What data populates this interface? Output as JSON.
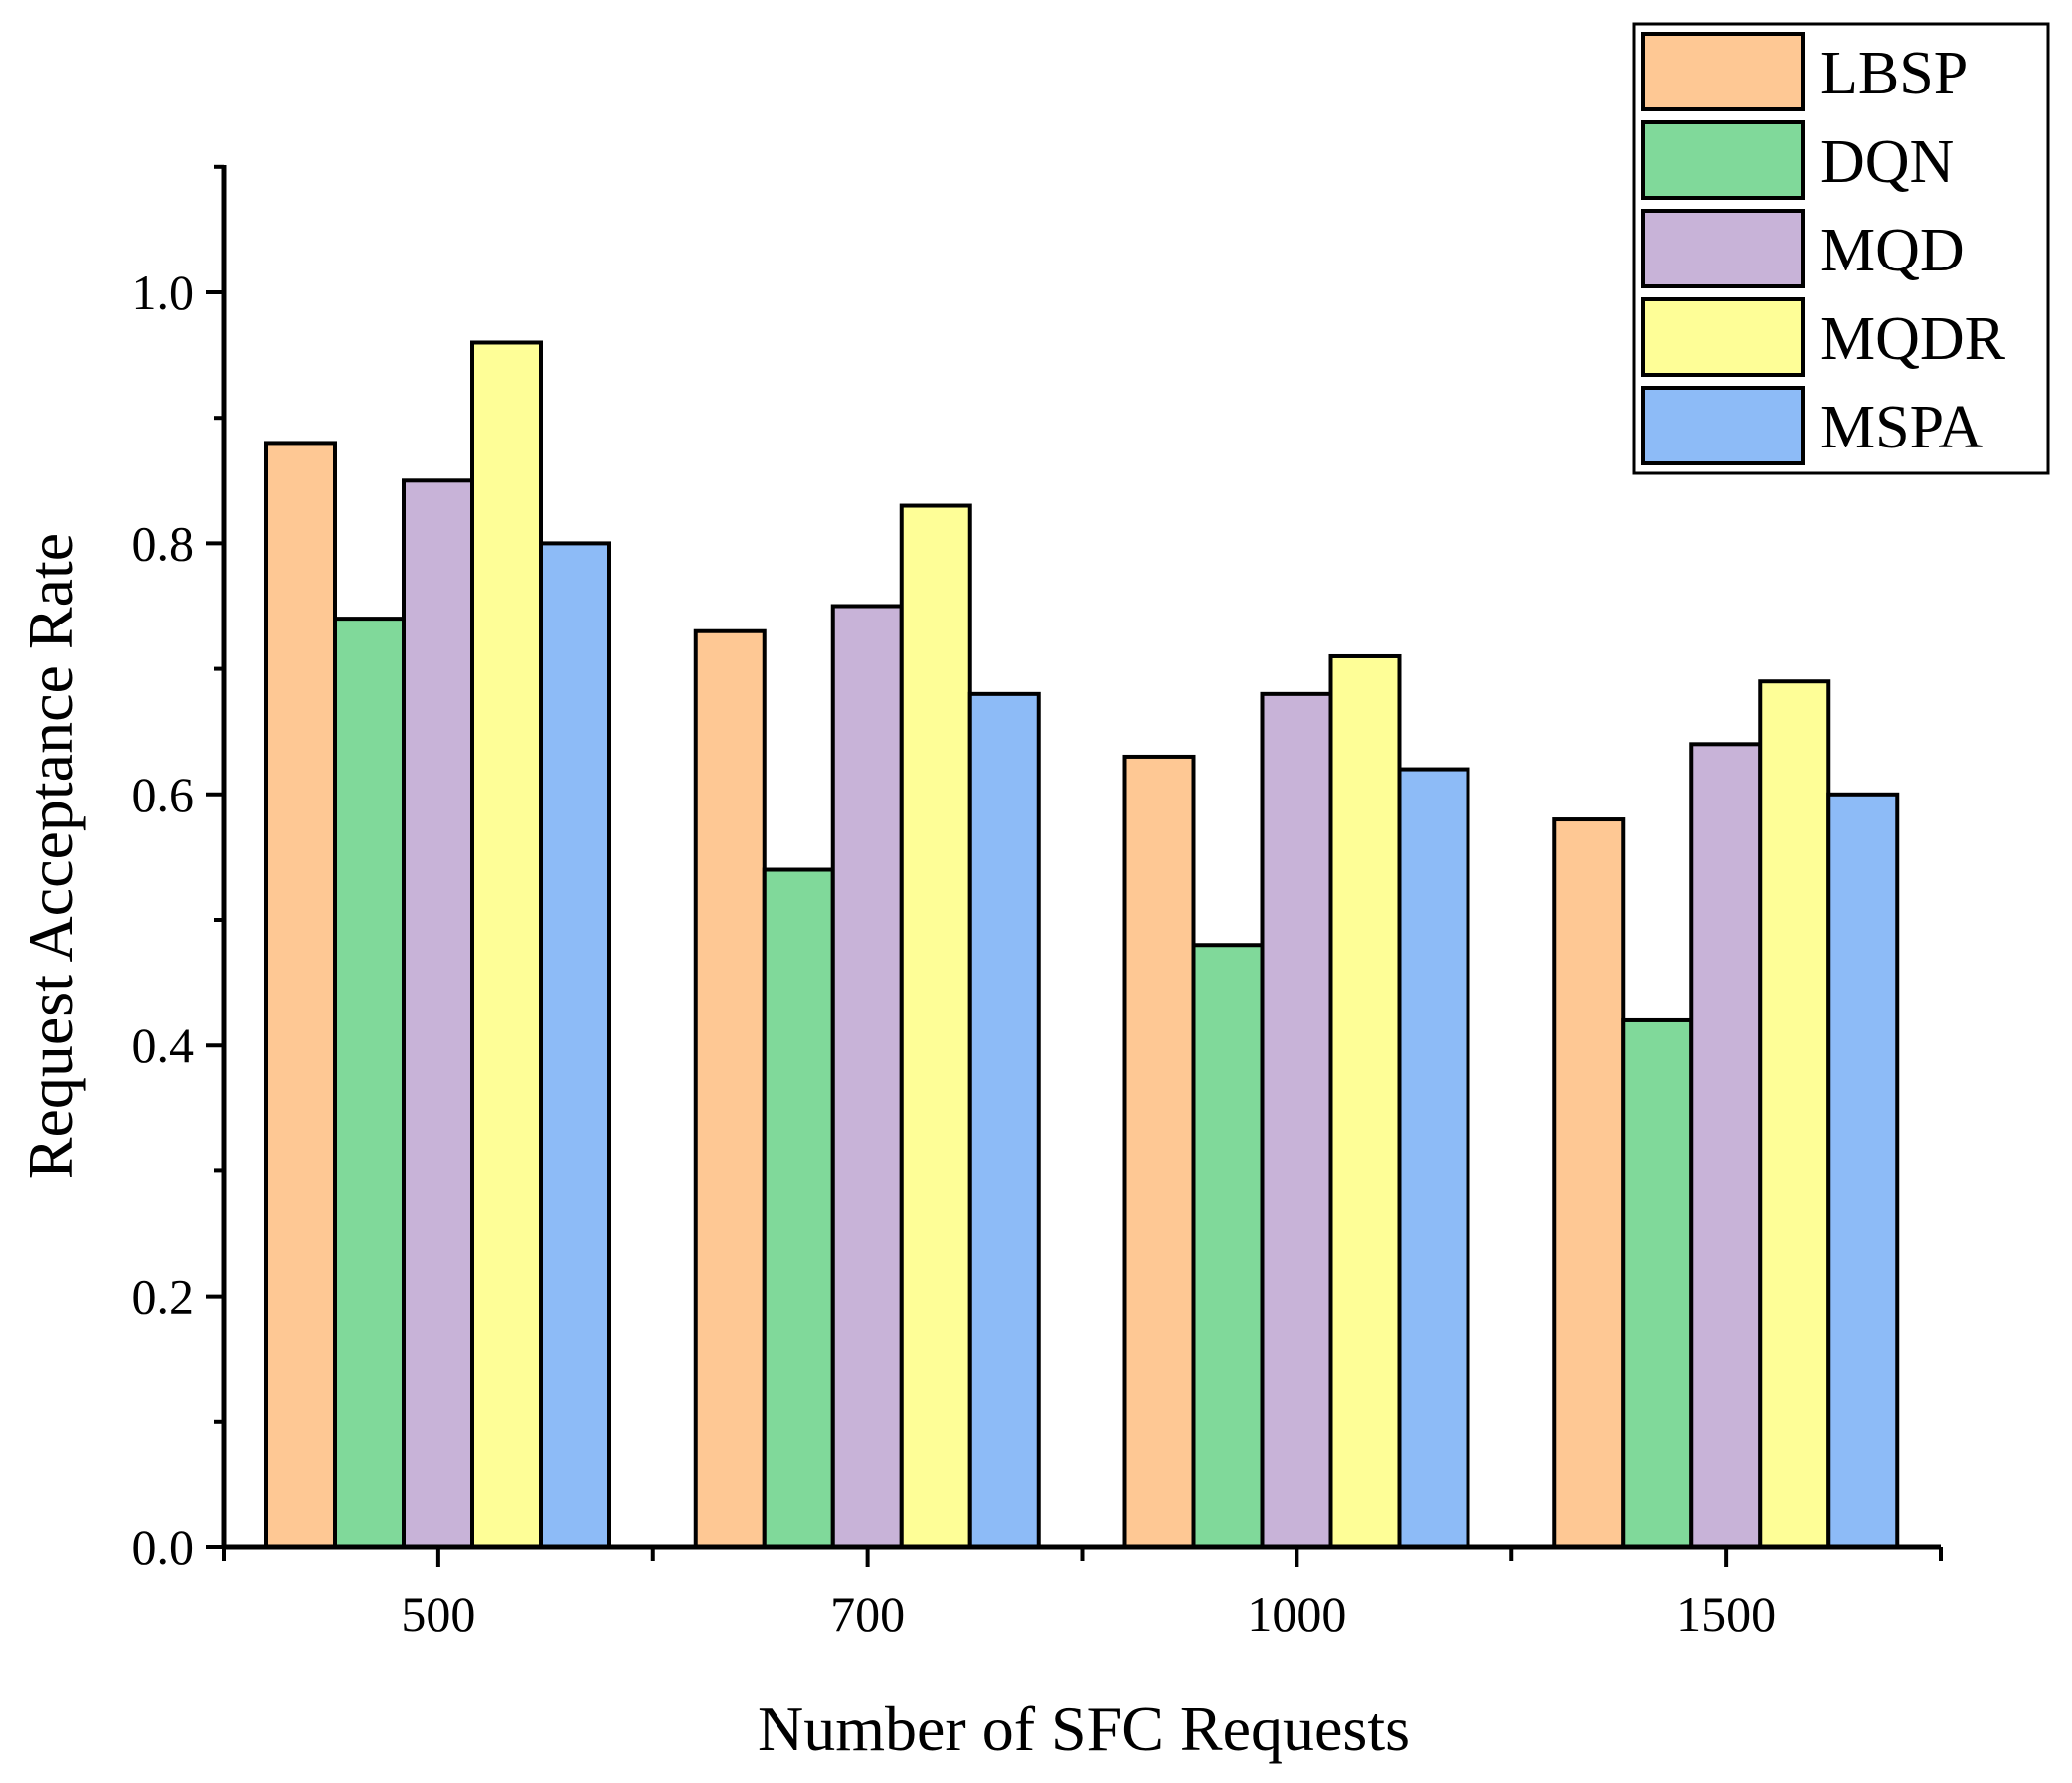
{
  "chart_data": {
    "type": "bar",
    "title": "",
    "xlabel": "Number of SFC Requests",
    "ylabel": "Request Acceptance Rate",
    "categories": [
      "500",
      "700",
      "1000",
      "1500"
    ],
    "ylim": [
      0,
      1.1
    ],
    "yticks": [
      0.0,
      0.2,
      0.4,
      0.6,
      0.8,
      1.0
    ],
    "ytick_labels": [
      "0.0",
      "0.2",
      "0.4",
      "0.6",
      "0.8",
      "1.0"
    ],
    "grid": false,
    "legend_position": "top-right",
    "series": [
      {
        "name": "LBSP",
        "color": "#FEC894",
        "values": [
          0.88,
          0.73,
          0.63,
          0.58
        ]
      },
      {
        "name": "DQN",
        "color": "#80D99A",
        "values": [
          0.74,
          0.54,
          0.48,
          0.42
        ]
      },
      {
        "name": "MQD",
        "color": "#C8B3D8",
        "values": [
          0.85,
          0.75,
          0.68,
          0.64
        ]
      },
      {
        "name": "MQDR",
        "color": "#FEFE97",
        "values": [
          0.96,
          0.83,
          0.71,
          0.69
        ]
      },
      {
        "name": "MSPA",
        "color": "#8DBBF7",
        "values": [
          0.8,
          0.68,
          0.62,
          0.6
        ]
      }
    ]
  }
}
